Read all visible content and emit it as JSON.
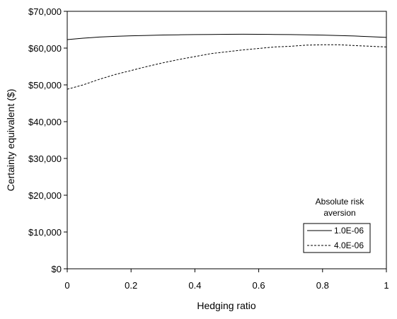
{
  "chart_data": {
    "type": "line",
    "title": "",
    "xlabel": "Hedging ratio",
    "ylabel": "Certainty equivalent ($)",
    "xlim": [
      0,
      1
    ],
    "ylim": [
      0,
      70000
    ],
    "x_ticks": [
      0,
      0.2,
      0.4,
      0.6,
      0.8,
      1
    ],
    "x_tick_labels": [
      "0",
      "0.2",
      "0.4",
      "0.6",
      "0.8",
      "1"
    ],
    "y_ticks": [
      0,
      10000,
      20000,
      30000,
      40000,
      50000,
      60000,
      70000
    ],
    "y_tick_labels": [
      "$0",
      "$10,000",
      "$20,000",
      "$30,000",
      "$40,000",
      "$50,000",
      "$60,000",
      "$70,000"
    ],
    "grid": false,
    "legend": {
      "title_line1": "Absolute risk",
      "title_line2": "aversion",
      "placement": "bottom-right"
    },
    "series": [
      {
        "name": "1.0E-06",
        "line_style": "solid",
        "x": [
          0,
          0.05,
          0.1,
          0.15,
          0.2,
          0.25,
          0.3,
          0.35,
          0.4,
          0.45,
          0.5,
          0.55,
          0.6,
          0.65,
          0.7,
          0.75,
          0.8,
          0.85,
          0.9,
          0.95,
          1
        ],
        "values": [
          62300,
          62700,
          63000,
          63200,
          63350,
          63450,
          63550,
          63620,
          63680,
          63720,
          63750,
          63760,
          63750,
          63720,
          63680,
          63620,
          63530,
          63420,
          63280,
          63100,
          62900
        ]
      },
      {
        "name": "4.0E-06",
        "line_style": "dashed",
        "x": [
          0,
          0.05,
          0.1,
          0.15,
          0.2,
          0.25,
          0.3,
          0.35,
          0.4,
          0.45,
          0.5,
          0.55,
          0.6,
          0.65,
          0.7,
          0.75,
          0.8,
          0.85,
          0.9,
          0.95,
          1
        ],
        "values": [
          48800,
          50000,
          51500,
          52800,
          53900,
          55000,
          56000,
          56900,
          57700,
          58500,
          59000,
          59500,
          59900,
          60300,
          60500,
          60800,
          60900,
          60900,
          60700,
          60500,
          60300
        ]
      }
    ]
  }
}
